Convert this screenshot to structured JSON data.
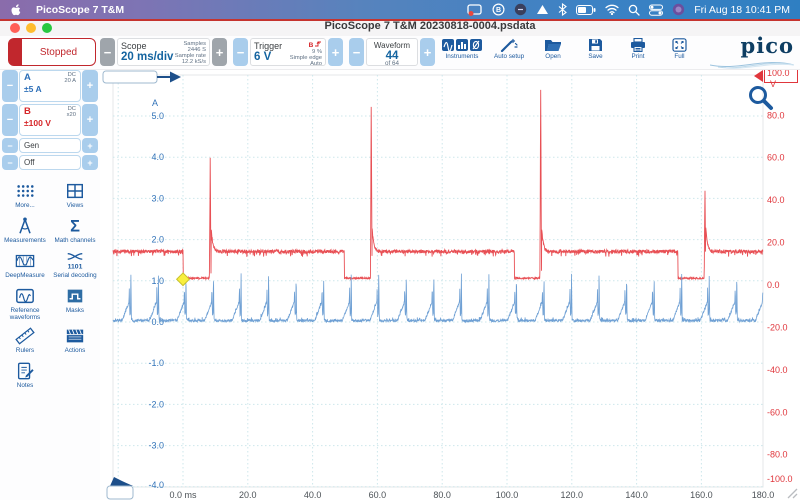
{
  "menubar": {
    "app_name": "PicoScope 7 T&M",
    "clock": "Fri Aug 18 10:41 PM",
    "status_icons": [
      "screen-record",
      "b-badge",
      "moon-circle",
      "play-triangle",
      "bluetooth",
      "battery",
      "wifi",
      "search",
      "control-center",
      "app-dot"
    ]
  },
  "titlebar": {
    "title": "PicoScope 7 T&M 20230818-0004.psdata"
  },
  "toolbar": {
    "stopped_label": "Stopped",
    "scope": {
      "label": "Scope",
      "value": "20 ms/div",
      "samples_label": "Samples",
      "samples": "2446 S",
      "rate_label": "Sample rate",
      "rate": "12.2 kS/s"
    },
    "trigger": {
      "label": "Trigger",
      "value": "6 V",
      "source": "B",
      "percent": "9 %",
      "mode": "Simple edge",
      "submode": "Auto"
    },
    "waveform": {
      "label": "Waveform",
      "value": "44",
      "of": "of 64"
    },
    "buttons": {
      "instruments": "Instruments",
      "auto_setup": "Auto setup",
      "open": "Open",
      "save": "Save",
      "print": "Print",
      "full": "Full"
    },
    "logo": {
      "brand": "pico",
      "sub": "Technology"
    }
  },
  "sidebar": {
    "channels": [
      {
        "name": "A",
        "coupling": "DC",
        "note": "20 A",
        "range": "±5 A"
      },
      {
        "name": "B",
        "coupling": "DC",
        "note": "x20",
        "range": "±100 V"
      }
    ],
    "gen_label": "Gen",
    "off_label": "Off",
    "tools": [
      {
        "label": "More..."
      },
      {
        "label": "Views"
      },
      {
        "label": "Measurements"
      },
      {
        "label": "Math channels"
      },
      {
        "label": "DeepMeasure"
      },
      {
        "label": "Serial decoding"
      },
      {
        "label": "Reference waveforms"
      },
      {
        "label": "Masks"
      },
      {
        "label": "Rulers"
      },
      {
        "label": "Actions"
      },
      {
        "label": "Notes"
      }
    ],
    "serial_bits": "1101"
  },
  "chart_data": {
    "type": "line",
    "x_axis": {
      "unit": "ms",
      "time_per_div_ms": 20,
      "range_ms": [
        -21.6,
        179
      ],
      "ticks_ms": [
        0,
        20,
        40,
        60,
        80,
        100,
        120,
        140,
        160,
        180
      ],
      "tick_labels": [
        "0.0 ms",
        "20.0",
        "40.0",
        "60.0",
        "80.0",
        "100.0",
        "120.0",
        "140.0",
        "160.0",
        "180.0"
      ]
    },
    "left_axis": {
      "name": "A",
      "unit": "A",
      "ticks": [
        5,
        4,
        3,
        2,
        1,
        0,
        -1,
        -2,
        -3,
        -4
      ],
      "color": "#3273b9"
    },
    "right_axis": {
      "name": "V",
      "unit": "V",
      "ticks": [
        100,
        80,
        60,
        40,
        20,
        0,
        -20,
        -40,
        -60,
        -80,
        -100
      ],
      "color": "#e0363c"
    },
    "series": [
      {
        "name": "channel-b-voltage",
        "axis": "right",
        "color": "#e85055",
        "baseline_v": 15.8,
        "dwell_low_v": 3.2,
        "noise_v": 0.85,
        "events": [
          {
            "dwell_start_ms": 0.0,
            "fire_ms": 8.3,
            "peak_v": 60
          },
          {
            "dwell_start_ms": 49.8,
            "fire_ms": 58.0,
            "peak_v": 91
          },
          {
            "dwell_start_ms": 102.3,
            "fire_ms": 110.3,
            "peak_v": 92
          },
          {
            "dwell_start_ms": 152.8,
            "fire_ms": 161.0,
            "peak_v": 48
          }
        ]
      },
      {
        "name": "channel-a-current",
        "axis": "left",
        "color": "#6fa0d4",
        "period_ms": 8.5,
        "phase_shift_ms": 5.42,
        "noise_a": 0.032,
        "profile": [
          [
            0,
            0.03
          ],
          [
            3.6,
            0.04
          ],
          [
            3.9,
            0.1
          ],
          [
            5.75,
            0.48
          ],
          [
            5.85,
            0.85
          ],
          [
            6.0,
            0.15
          ],
          [
            6.22,
            0.22
          ],
          [
            6.33,
            1.22
          ],
          [
            6.5,
            0.05
          ],
          [
            7.2,
            0.03
          ],
          [
            8.5,
            0.03
          ]
        ]
      }
    ],
    "trigger": {
      "t_ms": 0,
      "level_v": 6,
      "marker_color": "#f8ef3e"
    }
  }
}
